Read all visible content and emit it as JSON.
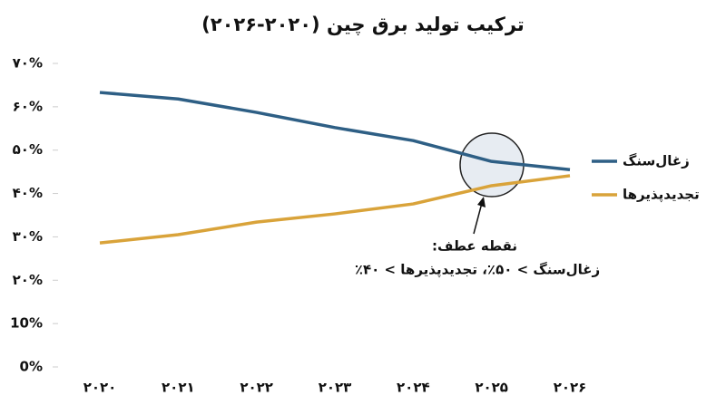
{
  "chart_data": {
    "type": "line",
    "title": "ترکیب تولید برق چین (۲۰۲۰-۲۰۲۶)",
    "categories": [
      "۲۰۲۰",
      "۲۰۲۱",
      "۲۰۲۲",
      "۲۰۲۳",
      "۲۰۲۴",
      "۲۰۲۵",
      "۲۰۲۶"
    ],
    "series": [
      {
        "name": "زغال‌سنگ",
        "color": "#2e5f85",
        "values": [
          63.3,
          61.8,
          58.7,
          55.2,
          52.2,
          47.4,
          45.5
        ]
      },
      {
        "name": "تجدیدپذیرها",
        "color": "#d9a33a",
        "values": [
          28.6,
          30.5,
          33.4,
          35.3,
          37.6,
          41.8,
          44.1
        ]
      }
    ],
    "ylim": [
      0,
      70
    ],
    "yticks": [
      {
        "value": 0,
        "label": "0%"
      },
      {
        "value": 10,
        "label": "10%"
      },
      {
        "value": 20,
        "label": "۲۰%"
      },
      {
        "value": 30,
        "label": "۳۰%"
      },
      {
        "value": 40,
        "label": "۴۰%"
      },
      {
        "value": 50,
        "label": "۵۰%"
      },
      {
        "value": 60,
        "label": "۶۰%"
      },
      {
        "value": 70,
        "label": "۷۰%"
      }
    ],
    "grid": false,
    "legend": "right",
    "annotation": {
      "title": "نقطه عطف:",
      "text": "زغال‌سنگ > ۵۰٪، تجدیدپذیرها > ۴۰٪"
    }
  }
}
